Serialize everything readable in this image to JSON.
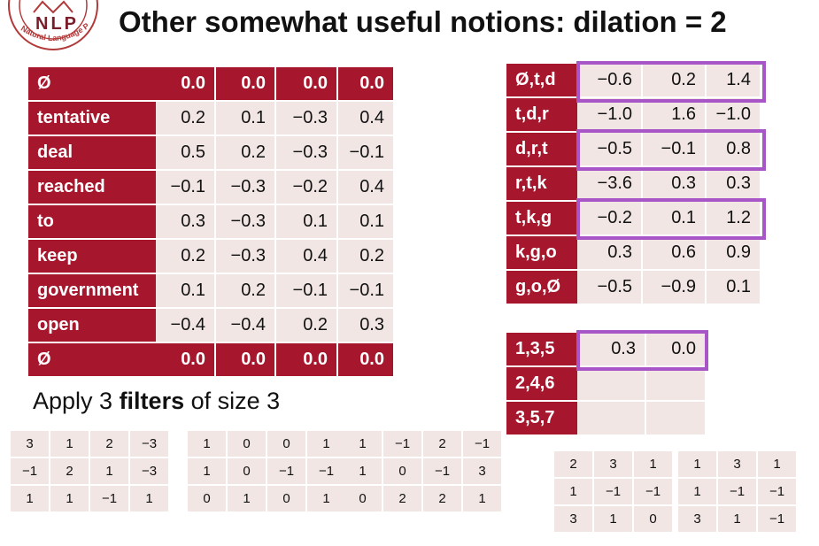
{
  "logo": {
    "text": "NLP",
    "ring_text": "Natural Language Processing"
  },
  "title": "Other somewhat useful notions: dilation = 2",
  "input_matrix": [
    {
      "label": "Ø",
      "values": [
        "0.0",
        "0.0",
        "0.0",
        "0.0"
      ],
      "pad": true
    },
    {
      "label": "tentative",
      "values": [
        "0.2",
        "0.1",
        "−0.3",
        "0.4"
      ]
    },
    {
      "label": "deal",
      "values": [
        "0.5",
        "0.2",
        "−0.3",
        "−0.1"
      ]
    },
    {
      "label": "reached",
      "values": [
        "−0.1",
        "−0.3",
        "−0.2",
        "0.4"
      ]
    },
    {
      "label": "to",
      "values": [
        "0.3",
        "−0.3",
        "0.1",
        "0.1"
      ]
    },
    {
      "label": "keep",
      "values": [
        "0.2",
        "−0.3",
        "0.4",
        "0.2"
      ]
    },
    {
      "label": "government",
      "values": [
        "0.1",
        "0.2",
        "−0.1",
        "−0.1"
      ]
    },
    {
      "label": "open",
      "values": [
        "−0.4",
        "−0.4",
        "0.2",
        "0.3"
      ]
    },
    {
      "label": "Ø",
      "values": [
        "0.0",
        "0.0",
        "0.0",
        "0.0"
      ],
      "pad": true
    }
  ],
  "apply_text": {
    "prefix": "Apply 3 ",
    "bold": "filters",
    "suffix": " of size 3"
  },
  "filters": [
    [
      [
        "3",
        "1",
        "2",
        "−3"
      ],
      [
        "−1",
        "2",
        "1",
        "−3"
      ],
      [
        "1",
        "1",
        "−1",
        "1"
      ]
    ],
    [
      [
        "1",
        "0",
        "0",
        "1"
      ],
      [
        "1",
        "0",
        "−1",
        "−1"
      ],
      [
        "0",
        "1",
        "0",
        "1"
      ]
    ],
    [
      [
        "1",
        "−1",
        "2",
        "−1"
      ],
      [
        "1",
        "0",
        "−1",
        "3"
      ],
      [
        "0",
        "2",
        "2",
        "1"
      ]
    ]
  ],
  "conv_output": [
    {
      "label": "Ø,t,d",
      "values": [
        "−0.6",
        "0.2",
        "1.4"
      ]
    },
    {
      "label": "t,d,r",
      "values": [
        "−1.0",
        "1.6",
        "−1.0"
      ]
    },
    {
      "label": "d,r,t",
      "values": [
        "−0.5",
        "−0.1",
        "0.8"
      ]
    },
    {
      "label": "r,t,k",
      "values": [
        "−3.6",
        "0.3",
        "0.3"
      ]
    },
    {
      "label": "t,k,g",
      "values": [
        "−0.2",
        "0.1",
        "1.2"
      ]
    },
    {
      "label": "k,g,o",
      "values": [
        "0.3",
        "0.6",
        "0.9"
      ]
    },
    {
      "label": "g,o,Ø",
      "values": [
        "−0.5",
        "−0.9",
        "0.1"
      ]
    }
  ],
  "dilated_output": [
    {
      "label": "1,3,5",
      "values": [
        "0.3",
        "0.0"
      ]
    },
    {
      "label": "2,4,6",
      "values": [
        "",
        ""
      ]
    },
    {
      "label": "3,5,7",
      "values": [
        "",
        ""
      ]
    }
  ],
  "dilated_filters": [
    [
      [
        "2",
        "3",
        "1"
      ],
      [
        "1",
        "−1",
        "−1"
      ],
      [
        "3",
        "1",
        "0"
      ]
    ],
    [
      [
        "1",
        "3",
        "1"
      ],
      [
        "1",
        "−1",
        "−1"
      ],
      [
        "3",
        "1",
        "−1"
      ]
    ]
  ],
  "colors": {
    "label_bg": "#a6162c",
    "cell_bg": "#f1e6e4",
    "highlight": "#a855c7"
  }
}
